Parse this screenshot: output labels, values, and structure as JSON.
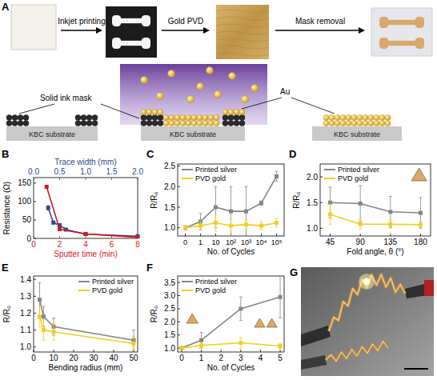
{
  "diagram": {
    "label": "A",
    "steps": [
      "Inkjet printing",
      "Gold PVD",
      "Mask removal"
    ],
    "substrates": [
      "KBC substrate",
      "KBC substrate",
      "KBC substrate"
    ],
    "annotations": [
      "Solid ink mask",
      "Au"
    ]
  },
  "chart_data": [
    {
      "label": "B",
      "type": "line",
      "marker": "square",
      "x_label": "Sputter time (min)",
      "x2_label": "Trace width (mm)",
      "y_label": "Resistance (Ω)",
      "xlim": [
        0,
        8
      ],
      "xticks": [
        0,
        2,
        4,
        6,
        8
      ],
      "x2lim": [
        0,
        2
      ],
      "x2ticks": [
        {
          "value": 0,
          "label": "0.0"
        },
        {
          "value": 0.5,
          "label": "0.5"
        },
        {
          "value": 1,
          "label": "1.0"
        },
        {
          "value": 1.5,
          "label": "1.5"
        },
        {
          "value": 2,
          "label": "2.0"
        }
      ],
      "ylim": [
        0,
        165
      ],
      "yticks": [
        0,
        50,
        100,
        150
      ],
      "series": [
        {
          "color": "#2c4b8c",
          "axis": "x2",
          "x": [
            0.28,
            0.38,
            0.5,
            0.62,
            1.0,
            2.0
          ],
          "values": [
            83,
            43,
            36,
            24,
            12,
            6
          ],
          "errors": [
            6,
            4,
            3,
            2,
            2,
            1
          ]
        },
        {
          "color": "#d7191c",
          "x": [
            1,
            2,
            4,
            8
          ],
          "values": [
            140,
            25,
            12,
            3
          ]
        }
      ]
    },
    {
      "label": "C",
      "type": "line",
      "marker": "square",
      "legend": "top-left",
      "x_label": "No. of Cycles",
      "y_label": "R/R₀",
      "categories": [
        "0",
        "1",
        "10",
        "10²",
        "10³",
        "10⁴",
        "10⁵"
      ],
      "ylim": [
        0.8,
        2.55
      ],
      "yticks": [
        {
          "value": 1,
          "label": "1.0"
        },
        {
          "value": 1.5,
          "label": "1.5"
        },
        {
          "value": 2,
          "label": "2.0"
        },
        {
          "value": 2.5,
          "label": "2.5"
        }
      ],
      "series": [
        {
          "name": "Printed silver",
          "color": "#858585",
          "values": [
            1.0,
            1.15,
            1.5,
            1.4,
            1.4,
            1.6,
            2.25
          ],
          "errors": [
            0.05,
            0.2,
            0.5,
            0.6,
            0.6,
            0.05,
            0.12
          ]
        },
        {
          "name": "PVD gold",
          "color": "#f2cf1d",
          "values": [
            1.0,
            1.05,
            1.12,
            1.05,
            1.08,
            1.05,
            1.12
          ],
          "errors": [
            0.03,
            0.1,
            0.2,
            0.15,
            0.1,
            0.1,
            0.1
          ]
        }
      ]
    },
    {
      "label": "D",
      "type": "line",
      "marker": "square",
      "legend": "top-left",
      "x_label": "Fold angle, θ (°)",
      "y_label": "R/R₀",
      "xlim": [
        30,
        195
      ],
      "xticks": [
        45,
        90,
        135,
        180
      ],
      "ylim": [
        0.85,
        2.25
      ],
      "yticks": [
        {
          "value": 1,
          "label": "1.0"
        },
        {
          "value": 1.5,
          "label": "1.5"
        },
        {
          "value": 2,
          "label": "2.0"
        }
      ],
      "series": [
        {
          "name": "Printed silver",
          "color": "#858585",
          "x": [
            45,
            90,
            135,
            180
          ],
          "values": [
            1.5,
            1.48,
            1.32,
            1.3
          ],
          "errors": [
            0.3,
            0.35,
            0.3,
            0.3
          ]
        },
        {
          "name": "PVD gold",
          "color": "#f2cf1d",
          "x": [
            45,
            90,
            135,
            180
          ],
          "values": [
            1.27,
            1.08,
            1.08,
            1.07
          ],
          "errors": [
            0.2,
            0.1,
            0.08,
            0.05
          ]
        }
      ]
    },
    {
      "label": "E",
      "type": "line",
      "marker": "square",
      "legend": "top-right",
      "x_label": "Bending radius (mm)",
      "y_label": "R/R₀",
      "xlim": [
        0,
        52
      ],
      "xticks": [
        0,
        10,
        20,
        30,
        40,
        50
      ],
      "ylim": [
        0.97,
        1.42
      ],
      "yticks": [
        {
          "value": 1,
          "label": "1.0"
        },
        {
          "value": 1.1,
          "label": "1.1"
        },
        {
          "value": 1.2,
          "label": "1.2"
        },
        {
          "value": 1.3,
          "label": "1.3"
        },
        {
          "value": 1.4,
          "label": "1.4"
        }
      ],
      "series": [
        {
          "name": "Printed silver",
          "color": "#858585",
          "x": [
            3,
            5,
            10,
            50
          ],
          "values": [
            1.28,
            1.18,
            1.12,
            1.04
          ],
          "errors": [
            0.1,
            0.06,
            0.05,
            0.06
          ]
        },
        {
          "name": "PVD gold",
          "color": "#f2cf1d",
          "x": [
            3,
            5,
            10,
            50
          ],
          "values": [
            1.18,
            1.1,
            1.09,
            1.02
          ],
          "errors": [
            0.06,
            0.06,
            0.05,
            0.04
          ]
        }
      ]
    },
    {
      "label": "F",
      "type": "line",
      "marker": "square",
      "legend": "top-left",
      "x_label": "No. of Cycles",
      "y_label": "R/R₀",
      "xlim": [
        -0.2,
        5.2
      ],
      "xticks": [
        0,
        1,
        2,
        3,
        4,
        5
      ],
      "ylim": [
        0.85,
        3.75
      ],
      "yticks": [
        {
          "value": 1,
          "label": "1.0"
        },
        {
          "value": 1.5,
          "label": "1.5"
        },
        {
          "value": 2,
          "label": "2.0"
        },
        {
          "value": 2.5,
          "label": "2.5"
        },
        {
          "value": 3,
          "label": "3.0"
        },
        {
          "value": 3.5,
          "label": "3.5"
        }
      ],
      "series": [
        {
          "name": "Printed silver",
          "color": "#858585",
          "x": [
            0,
            1,
            3,
            5
          ],
          "values": [
            1.0,
            1.3,
            2.5,
            2.95
          ],
          "errors": [
            0.02,
            0.3,
            0.45,
            0.8
          ]
        },
        {
          "name": "PVD gold",
          "color": "#f2cf1d",
          "x": [
            0,
            1,
            3,
            5
          ],
          "values": [
            1.0,
            1.1,
            1.2,
            1.08
          ],
          "errors": [
            0.02,
            0.08,
            0.2,
            0.1
          ]
        }
      ]
    }
  ],
  "photo": {
    "label": "G"
  }
}
